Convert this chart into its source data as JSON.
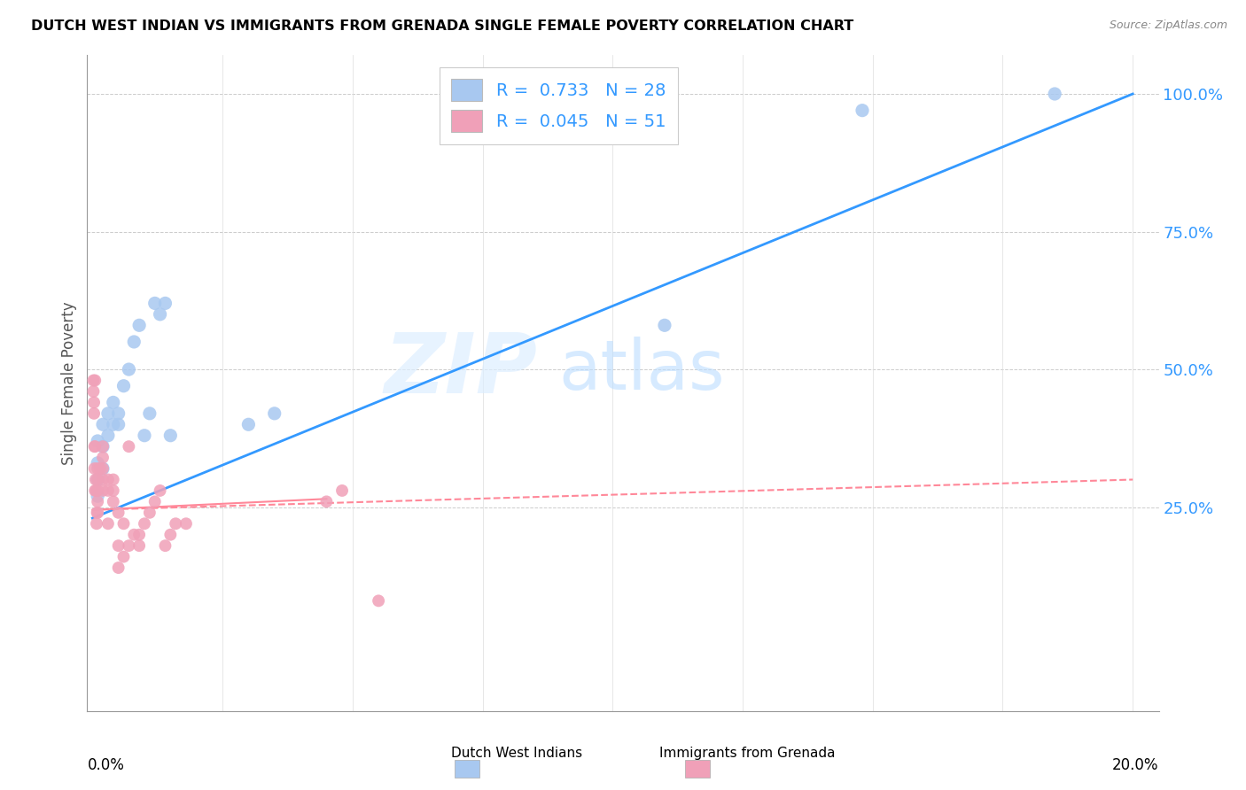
{
  "title": "DUTCH WEST INDIAN VS IMMIGRANTS FROM GRENADA SINGLE FEMALE POVERTY CORRELATION CHART",
  "source": "Source: ZipAtlas.com",
  "ylabel": "Single Female Poverty",
  "ytick_vals": [
    0.25,
    0.5,
    0.75,
    1.0
  ],
  "ytick_labels": [
    "25.0%",
    "50.0%",
    "75.0%",
    "100.0%"
  ],
  "legend1_label": "R =  0.733   N = 28",
  "legend2_label": "R =  0.045   N = 51",
  "blue_color": "#a8c8f0",
  "pink_color": "#f0a0b8",
  "blue_line_color": "#3399ff",
  "pink_line_color": "#ff8899",
  "watermark_zip": "ZIP",
  "watermark_atlas": "atlas",
  "blue_dots_x": [
    0.001,
    0.001,
    0.001,
    0.001,
    0.002,
    0.002,
    0.002,
    0.003,
    0.003,
    0.004,
    0.004,
    0.005,
    0.005,
    0.006,
    0.007,
    0.008,
    0.009,
    0.01,
    0.011,
    0.012,
    0.013,
    0.014,
    0.015,
    0.03,
    0.035,
    0.11,
    0.148,
    0.185
  ],
  "blue_dots_y": [
    0.27,
    0.3,
    0.33,
    0.37,
    0.32,
    0.36,
    0.4,
    0.38,
    0.42,
    0.4,
    0.44,
    0.4,
    0.42,
    0.47,
    0.5,
    0.55,
    0.58,
    0.38,
    0.42,
    0.62,
    0.6,
    0.62,
    0.38,
    0.4,
    0.42,
    0.58,
    0.97,
    1.0
  ],
  "pink_dots_x": [
    0.0002,
    0.0002,
    0.0003,
    0.0003,
    0.0004,
    0.0004,
    0.0005,
    0.0005,
    0.0005,
    0.0006,
    0.0007,
    0.0008,
    0.0009,
    0.001,
    0.001,
    0.001,
    0.001,
    0.001,
    0.0015,
    0.002,
    0.002,
    0.002,
    0.002,
    0.002,
    0.003,
    0.003,
    0.003,
    0.004,
    0.004,
    0.004,
    0.005,
    0.005,
    0.005,
    0.006,
    0.006,
    0.007,
    0.007,
    0.008,
    0.009,
    0.009,
    0.01,
    0.011,
    0.012,
    0.013,
    0.014,
    0.015,
    0.016,
    0.018,
    0.045,
    0.048,
    0.055
  ],
  "pink_dots_y": [
    0.46,
    0.48,
    0.42,
    0.44,
    0.32,
    0.36,
    0.36,
    0.28,
    0.48,
    0.3,
    0.28,
    0.22,
    0.24,
    0.24,
    0.26,
    0.28,
    0.3,
    0.32,
    0.32,
    0.28,
    0.32,
    0.3,
    0.34,
    0.36,
    0.28,
    0.3,
    0.22,
    0.26,
    0.28,
    0.3,
    0.14,
    0.18,
    0.24,
    0.16,
    0.22,
    0.18,
    0.36,
    0.2,
    0.18,
    0.2,
    0.22,
    0.24,
    0.26,
    0.28,
    0.18,
    0.2,
    0.22,
    0.22,
    0.26,
    0.28,
    0.08
  ],
  "blue_line_x": [
    0.0,
    0.2
  ],
  "blue_line_y": [
    0.23,
    1.0
  ],
  "pink_line_x": [
    0.0,
    0.2
  ],
  "pink_line_y": [
    0.245,
    0.3
  ],
  "pink_solid_line_x": [
    0.0,
    0.045
  ],
  "pink_solid_line_y": [
    0.245,
    0.265
  ],
  "xmin": -0.001,
  "xmax": 0.205,
  "ymin": -0.12,
  "ymax": 1.07
}
